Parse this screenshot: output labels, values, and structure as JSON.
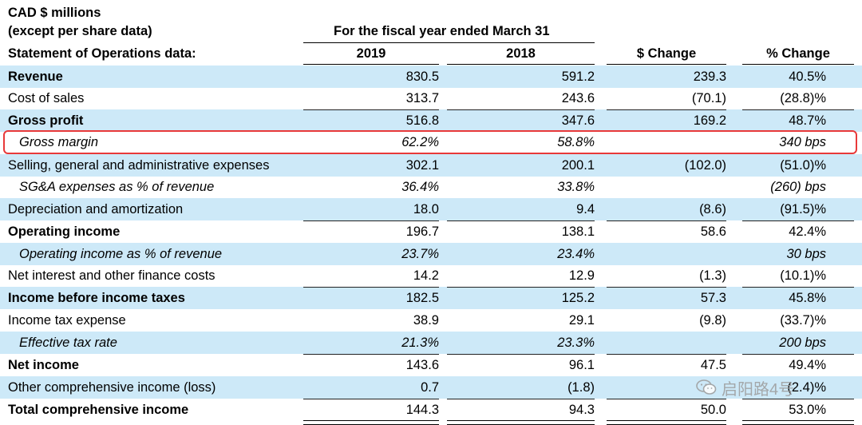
{
  "header": {
    "unit_line1": "CAD $ millions",
    "unit_line2": "(except per share data)",
    "period": "For the fiscal year ended March 31",
    "section": "Statement of Operations data:",
    "col_2019": "2019",
    "col_2018": "2018",
    "col_change": "$ Change",
    "col_pct": "% Change"
  },
  "rows": [
    {
      "label": "Revenue",
      "v2019": "830.5",
      "v2018": "591.2",
      "chg": "239.3",
      "pct": "40.5%"
    },
    {
      "label": "Cost of sales",
      "v2019": "313.7",
      "v2018": "243.6",
      "chg": "(70.1)",
      "pct": "(28.8)%"
    },
    {
      "label": "Gross profit",
      "v2019": "516.8",
      "v2018": "347.6",
      "chg": "169.2",
      "pct": "48.7%"
    },
    {
      "label": "Gross margin",
      "v2019": "62.2%",
      "v2018": "58.8%",
      "chg": "",
      "pct": "340 bps"
    },
    {
      "label": "Selling, general and administrative expenses",
      "v2019": "302.1",
      "v2018": "200.1",
      "chg": "(102.0)",
      "pct": "(51.0)%"
    },
    {
      "label": "SG&A expenses as % of revenue",
      "v2019": "36.4%",
      "v2018": "33.8%",
      "chg": "",
      "pct": "(260) bps"
    },
    {
      "label": "Depreciation and amortization",
      "v2019": "18.0",
      "v2018": "9.4",
      "chg": "(8.6)",
      "pct": "(91.5)%"
    },
    {
      "label": "Operating income",
      "v2019": "196.7",
      "v2018": "138.1",
      "chg": "58.6",
      "pct": "42.4%"
    },
    {
      "label": "Operating income as % of revenue",
      "v2019": "23.7%",
      "v2018": "23.4%",
      "chg": "",
      "pct": "30 bps"
    },
    {
      "label": "Net interest and other finance costs",
      "v2019": "14.2",
      "v2018": "12.9",
      "chg": "(1.3)",
      "pct": "(10.1)%"
    },
    {
      "label": "Income before income taxes",
      "v2019": "182.5",
      "v2018": "125.2",
      "chg": "57.3",
      "pct": "45.8%"
    },
    {
      "label": "Income tax expense",
      "v2019": "38.9",
      "v2018": "29.1",
      "chg": "(9.8)",
      "pct": "(33.7)%"
    },
    {
      "label": "Effective tax rate",
      "v2019": "21.3%",
      "v2018": "23.3%",
      "chg": "",
      "pct": "200 bps"
    },
    {
      "label": "Net income",
      "v2019": "143.6",
      "v2018": "96.1",
      "chg": "47.5",
      "pct": "49.4%"
    },
    {
      "label": "Other comprehensive income (loss)",
      "v2019": "0.7",
      "v2018": "(1.8)",
      "chg": "",
      "pct": "(2.4)%"
    },
    {
      "label": "Total comprehensive income",
      "v2019": "144.3",
      "v2018": "94.3",
      "chg": "50.0",
      "pct": "53.0%"
    }
  ],
  "watermark": {
    "text": "启阳路4号"
  },
  "colors": {
    "shade": "#cde9f8",
    "highlight": "#e8393a"
  }
}
